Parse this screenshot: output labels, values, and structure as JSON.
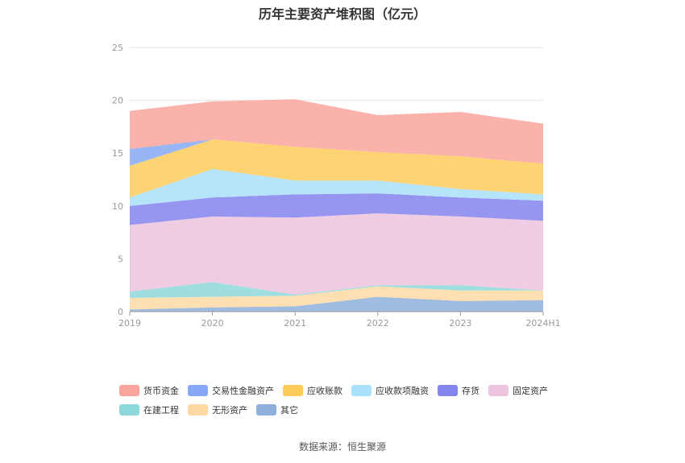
{
  "title": "历年主要资产堆积图（亿元）",
  "source": "数据来源：恒生聚源",
  "chart_data": {
    "type": "area",
    "stacked": true,
    "x": [
      "2019",
      "2020",
      "2021",
      "2022",
      "2023",
      "2024H1"
    ],
    "ylim": [
      0,
      25
    ],
    "yticks": [
      0,
      5,
      10,
      15,
      20,
      25
    ],
    "grid": true,
    "legend_position": "bottom",
    "series": [
      {
        "name": "其它",
        "color": "#8fb0dc",
        "values": [
          0.2,
          0.4,
          0.5,
          1.4,
          1.0,
          1.1
        ]
      },
      {
        "name": "无形资产",
        "color": "#fdd9a4",
        "values": [
          1.1,
          1.0,
          1.0,
          1.0,
          1.0,
          0.9
        ]
      },
      {
        "name": "在建工程",
        "color": "#8dd8da",
        "values": [
          0.6,
          1.4,
          0.1,
          0.1,
          0.5,
          0.0
        ]
      },
      {
        "name": "固定资产",
        "color": "#edc3de",
        "values": [
          6.3,
          6.2,
          7.3,
          6.8,
          6.5,
          6.6
        ]
      },
      {
        "name": "存货",
        "color": "#8484ed",
        "values": [
          1.8,
          1.8,
          2.2,
          1.9,
          1.8,
          1.9
        ]
      },
      {
        "name": "应收款项融资",
        "color": "#a9e0fa",
        "values": [
          0.8,
          2.7,
          1.3,
          1.2,
          0.8,
          0.6
        ]
      },
      {
        "name": "应收账款",
        "color": "#fdcb5a",
        "values": [
          3.0,
          2.8,
          3.2,
          2.7,
          3.1,
          2.9
        ]
      },
      {
        "name": "交易性金融资产",
        "color": "#86a8f5",
        "values": [
          1.6,
          0.0,
          0.0,
          0.0,
          0.0,
          0.0
        ]
      },
      {
        "name": "货币资金",
        "color": "#f9a59b",
        "values": [
          3.6,
          3.6,
          4.5,
          3.5,
          4.2,
          3.8
        ]
      }
    ],
    "legend_order": [
      "货币资金",
      "交易性金融资产",
      "应收账款",
      "应收款项融资",
      "存货",
      "固定资产",
      "在建工程",
      "无形资产",
      "其它"
    ]
  }
}
